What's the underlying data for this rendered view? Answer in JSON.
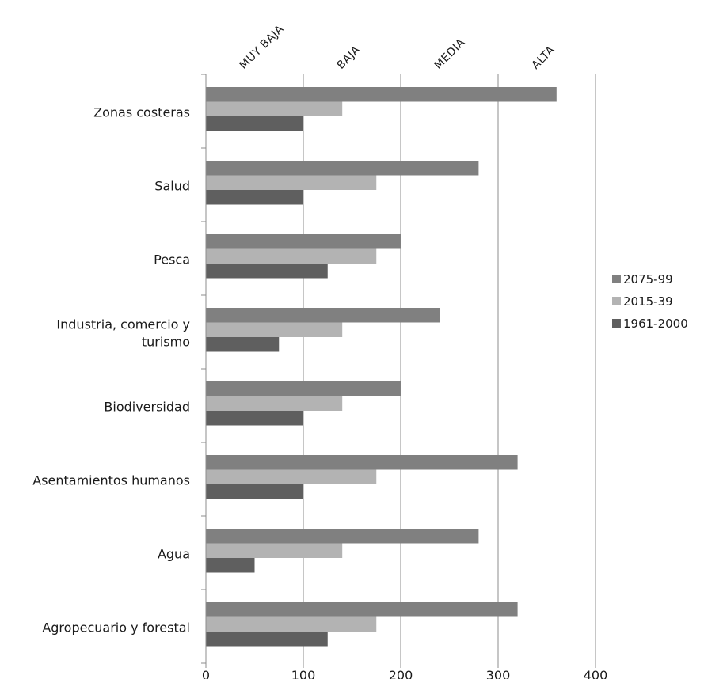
{
  "chart_data": {
    "type": "bar",
    "orientation": "horizontal",
    "categories": [
      "Zonas costeras",
      "Salud",
      "Pesca",
      "Industria, comercio y turismo",
      "Biodiversidad",
      "Asentamientos humanos",
      "Agua",
      "Agropecuario y forestal"
    ],
    "category_label_lines": [
      [
        "Zonas costeras"
      ],
      [
        "Salud"
      ],
      [
        "Pesca"
      ],
      [
        "Industria, comercio y",
        "turismo"
      ],
      [
        "Biodiversidad"
      ],
      [
        "Asentamientos humanos"
      ],
      [
        "Agua"
      ],
      [
        "Agropecuario y forestal"
      ]
    ],
    "series": [
      {
        "name": "2075-99",
        "color": "#808080",
        "values": [
          360,
          280,
          200,
          240,
          200,
          320,
          280,
          320
        ]
      },
      {
        "name": "2015-39",
        "color": "#b3b3b3",
        "values": [
          140,
          175,
          175,
          140,
          140,
          175,
          140,
          175
        ]
      },
      {
        "name": "1961-2000",
        "color": "#5f5f5f",
        "values": [
          100,
          100,
          125,
          75,
          100,
          100,
          50,
          125
        ]
      }
    ],
    "xlim": [
      0,
      400
    ],
    "xticks": [
      0,
      100,
      200,
      300,
      400
    ],
    "top_labels": [
      "MUY BAJA",
      "BAJA",
      "MEDIA",
      "ALTA"
    ],
    "grid": true,
    "legend": "right",
    "title": "",
    "xlabel": "",
    "ylabel": ""
  }
}
